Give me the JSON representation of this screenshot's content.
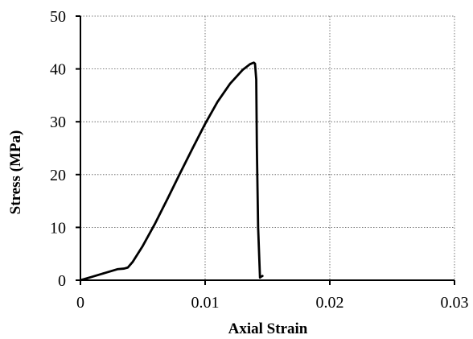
{
  "chart_data": {
    "type": "line",
    "title": "",
    "xlabel": "Axial Strain",
    "ylabel": "Stress (MPa)",
    "xlim": [
      0,
      0.03
    ],
    "ylim": [
      0,
      50
    ],
    "xticks": [
      0,
      0.01,
      0.02,
      0.03
    ],
    "xtick_labels": [
      "0",
      "0.01",
      "0.02",
      "0.03"
    ],
    "yticks": [
      0,
      10,
      20,
      30,
      40,
      50
    ],
    "ytick_labels": [
      "0",
      "10",
      "20",
      "30",
      "40",
      "50"
    ],
    "grid": true,
    "legend": "none",
    "series": [
      {
        "color": "#000000",
        "x": [
          0,
          0.001,
          0.002,
          0.003,
          0.0035,
          0.0038,
          0.0042,
          0.005,
          0.006,
          0.007,
          0.008,
          0.009,
          0.01,
          0.011,
          0.012,
          0.013,
          0.0136,
          0.0139,
          0.014,
          0.0141,
          0.01415,
          0.01425,
          0.0144,
          0.0145,
          0.0146
        ],
        "y": [
          0,
          0.7,
          1.4,
          2.1,
          2.2,
          2.4,
          3.5,
          6.5,
          10.8,
          15.5,
          20.3,
          25.0,
          29.6,
          33.8,
          37.2,
          39.8,
          40.9,
          41.2,
          41.0,
          38.0,
          25.0,
          10.0,
          0.5,
          0.7,
          0.8
        ]
      }
    ]
  }
}
